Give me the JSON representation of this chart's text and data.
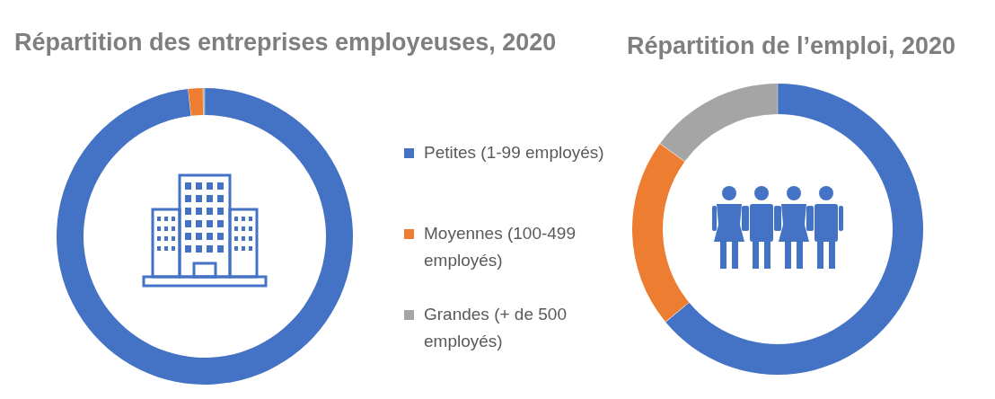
{
  "chart_data": [
    {
      "type": "donut",
      "title": "Répartition des entreprises employeuses, 2020",
      "categories": [
        "Petites (1-99 employés)",
        "Moyennes (100-499 employés)",
        "Grandes (+ de 500 employés)"
      ],
      "values": [
        98.2,
        1.6,
        0.2
      ],
      "colors": [
        "#4472c4",
        "#ed7d31",
        "#a5a5a5"
      ],
      "legend": "right"
    },
    {
      "type": "donut",
      "title": "Répartition de l’emploi, 2020",
      "categories": [
        null,
        null,
        null
      ],
      "values": [
        64,
        21,
        15
      ],
      "colors": [
        "#4472c4",
        "#ed7d31",
        "#a5a5a5"
      ]
    }
  ]
}
